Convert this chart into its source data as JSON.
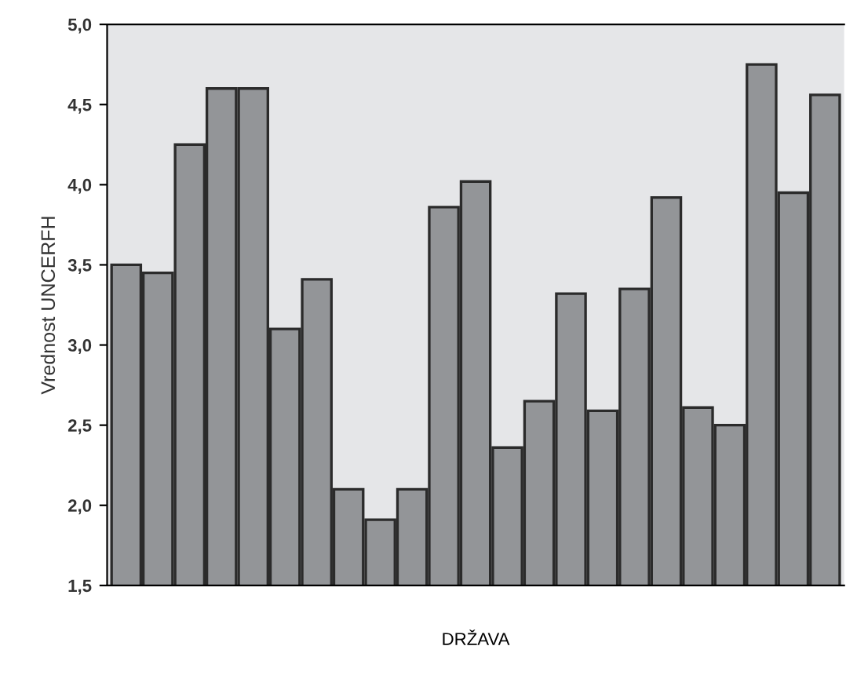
{
  "chart_data": {
    "type": "bar",
    "xlabel": "DRŽAVA",
    "ylabel": "Vrednost UNCERFH",
    "categories": [
      null,
      null,
      null,
      null,
      null,
      null,
      null,
      null,
      null,
      null,
      null,
      null,
      null,
      null,
      null,
      null,
      null,
      null,
      null,
      null,
      null,
      null,
      null
    ],
    "values": [
      3.5,
      3.45,
      4.25,
      4.6,
      4.6,
      3.1,
      3.41,
      2.1,
      1.91,
      2.1,
      3.86,
      4.02,
      2.36,
      2.65,
      3.32,
      2.59,
      3.35,
      3.92,
      2.61,
      2.5,
      4.75,
      3.95,
      4.56
    ],
    "color": "#939598",
    "ylim": [
      1.5,
      5.0
    ],
    "yticks": [
      {
        "value": 1.5,
        "label": "1,5"
      },
      {
        "value": 2.0,
        "label": "2,0"
      },
      {
        "value": 2.5,
        "label": "2,5"
      },
      {
        "value": 3.0,
        "label": "3,0"
      },
      {
        "value": 3.5,
        "label": "3,5"
      },
      {
        "value": 4.0,
        "label": "4,0"
      },
      {
        "value": 4.5,
        "label": "4,5"
      },
      {
        "value": 5.0,
        "label": "5,0"
      }
    ],
    "grid": false,
    "legend": false
  }
}
